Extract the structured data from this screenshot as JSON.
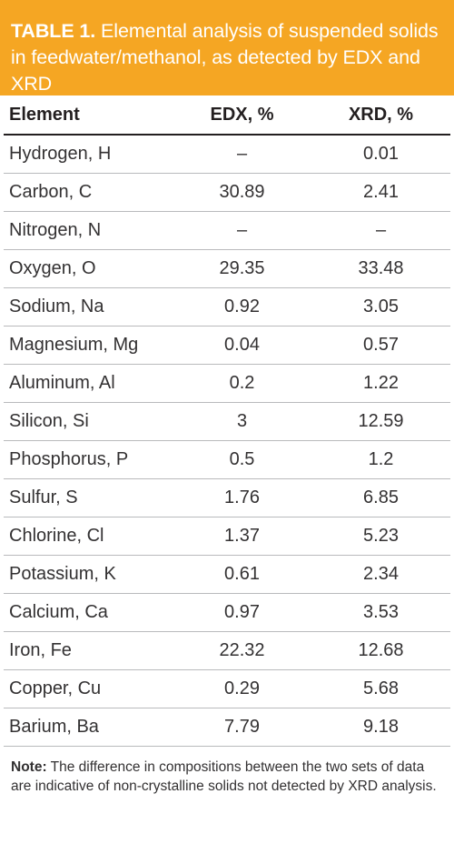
{
  "title": {
    "label": "TABLE 1.",
    "text": "Elemental analysis of suspended solids in feedwater/methanol, as detected by EDX and XRD"
  },
  "table": {
    "headers": [
      "Element",
      "EDX, %",
      "XRD, %"
    ],
    "rows": [
      [
        "Hydrogen, H",
        "–",
        "0.01"
      ],
      [
        "Carbon, C",
        "30.89",
        "2.41"
      ],
      [
        "Nitrogen, N",
        "–",
        "–"
      ],
      [
        "Oxygen, O",
        "29.35",
        "33.48"
      ],
      [
        "Sodium, Na",
        "0.92",
        "3.05"
      ],
      [
        "Magnesium, Mg",
        "0.04",
        "0.57"
      ],
      [
        "Aluminum, Al",
        "0.2",
        "1.22"
      ],
      [
        "Silicon, Si",
        "3",
        "12.59"
      ],
      [
        "Phosphorus, P",
        "0.5",
        "1.2"
      ],
      [
        "Sulfur, S",
        "1.76",
        "6.85"
      ],
      [
        "Chlorine, Cl",
        "1.37",
        "5.23"
      ],
      [
        "Potassium, K",
        "0.61",
        "2.34"
      ],
      [
        "Calcium, Ca",
        "0.97",
        "3.53"
      ],
      [
        "Iron, Fe",
        "22.32",
        "12.68"
      ],
      [
        "Copper, Cu",
        "0.29",
        "5.68"
      ],
      [
        "Barium, Ba",
        "7.79",
        "9.18"
      ]
    ]
  },
  "note": {
    "label": "Note:",
    "text": "The difference in compositions between the two sets of data are indicative of non-crystalline solids not detected by XRD analysis."
  },
  "colors": {
    "title_background": "#f5a623",
    "title_text": "#ffffff",
    "body_text": "#231f20",
    "row_divider": "#b9babc"
  }
}
